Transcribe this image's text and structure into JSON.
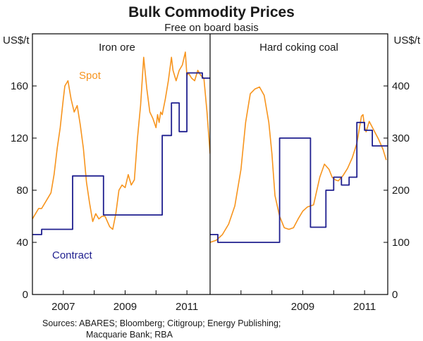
{
  "header": {
    "title": "Bulk Commodity Prices",
    "subtitle": "Free on board basis"
  },
  "source": {
    "line1": "Sources: ABARES; Bloomberg; Citigroup; Energy Publishing;",
    "line2": "Macquarie Bank; RBA"
  },
  "colors": {
    "spot": "#f7941d",
    "contract": "#1f1f8f",
    "axis": "#000000"
  },
  "chart_data": [
    {
      "type": "line",
      "title": "Iron ore",
      "ylabel": "US$/t",
      "ylim": [
        0,
        200
      ],
      "yticks": [
        0,
        40,
        80,
        120,
        160
      ],
      "xlim": [
        2006.0,
        2011.75
      ],
      "xtick_labels": [
        {
          "label": "2007",
          "x": 2007.0
        },
        {
          "label": "2009",
          "x": 2009.0
        },
        {
          "label": "2011",
          "x": 2011.0
        }
      ],
      "annotations": [
        {
          "text": "Spot",
          "series": "Spot"
        },
        {
          "text": "Contract",
          "series": "Contract"
        }
      ],
      "series": [
        {
          "name": "Spot",
          "x": [
            2006.0,
            2006.1,
            2006.2,
            2006.3,
            2006.45,
            2006.6,
            2006.7,
            2006.8,
            2006.9,
            2007.0,
            2007.05,
            2007.15,
            2007.25,
            2007.35,
            2007.45,
            2007.55,
            2007.65,
            2007.75,
            2007.85,
            2007.95,
            2008.05,
            2008.15,
            2008.25,
            2008.35,
            2008.5,
            2008.6,
            2008.7,
            2008.8,
            2008.9,
            2009.0,
            2009.1,
            2009.2,
            2009.3,
            2009.4,
            2009.5,
            2009.6,
            2009.7,
            2009.8,
            2009.9,
            2010.0,
            2010.05,
            2010.1,
            2010.15,
            2010.2,
            2010.3,
            2010.4,
            2010.5,
            2010.55,
            2010.65,
            2010.75,
            2010.85,
            2010.95,
            2011.0,
            2011.05,
            2011.15,
            2011.25,
            2011.35,
            2011.45,
            2011.55,
            2011.65,
            2011.75
          ],
          "values": [
            58,
            62,
            66,
            66,
            72,
            78,
            92,
            112,
            128,
            150,
            160,
            164,
            150,
            140,
            145,
            130,
            112,
            86,
            70,
            56,
            62,
            58,
            60,
            60,
            52,
            50,
            62,
            80,
            84,
            82,
            92,
            84,
            88,
            120,
            145,
            182,
            158,
            140,
            135,
            128,
            138,
            132,
            140,
            138,
            150,
            164,
            182,
            172,
            164,
            172,
            176,
            186,
            168,
            170,
            166,
            164,
            172,
            168,
            166,
            140,
            108
          ]
        },
        {
          "name": "Contract",
          "x": [
            2006.0,
            2006.3,
            2006.3,
            2007.3,
            2007.3,
            2008.3,
            2008.3,
            2009.3,
            2009.3,
            2010.2,
            2010.2,
            2010.5,
            2010.5,
            2010.75,
            2010.75,
            2011.0,
            2011.0,
            2011.5,
            2011.5,
            2011.75
          ],
          "values": [
            46,
            46,
            50,
            50,
            91,
            91,
            61,
            61,
            61,
            61,
            122,
            122,
            147,
            147,
            125,
            125,
            170,
            170,
            166,
            166
          ]
        }
      ]
    },
    {
      "type": "line",
      "title": "Hard coking coal",
      "ylabel": "US$/t",
      "ylim": [
        0,
        500
      ],
      "yticks": [
        0,
        100,
        200,
        300,
        400
      ],
      "xlim": [
        2006.0,
        2011.75
      ],
      "xtick_labels": [
        {
          "label": "2009",
          "x": 2009.0
        },
        {
          "label": "2011",
          "x": 2011.0
        }
      ],
      "series": [
        {
          "name": "Spot",
          "x": [
            2006.0,
            2006.2,
            2006.4,
            2006.6,
            2006.8,
            2007.0,
            2007.15,
            2007.3,
            2007.45,
            2007.6,
            2007.75,
            2007.9,
            2008.0,
            2008.1,
            2008.25,
            2008.4,
            2008.55,
            2008.7,
            2008.85,
            2009.0,
            2009.15,
            2009.35,
            2009.55,
            2009.7,
            2009.85,
            2009.95,
            2010.05,
            2010.15,
            2010.3,
            2010.45,
            2010.6,
            2010.75,
            2010.9,
            2010.95,
            2011.0,
            2011.05,
            2011.15,
            2011.3,
            2011.45,
            2011.6,
            2011.7
          ],
          "values": [
            100,
            104,
            115,
            135,
            170,
            240,
            330,
            385,
            394,
            398,
            382,
            330,
            270,
            190,
            150,
            128,
            125,
            128,
            145,
            160,
            168,
            172,
            225,
            250,
            240,
            225,
            220,
            218,
            228,
            242,
            262,
            290,
            342,
            345,
            322,
            312,
            332,
            315,
            298,
            278,
            258
          ]
        },
        {
          "name": "Contract",
          "x": [
            2006.0,
            2006.25,
            2006.25,
            2007.25,
            2007.25,
            2008.25,
            2008.25,
            2009.25,
            2009.25,
            2009.5,
            2009.5,
            2009.75,
            2009.75,
            2010.0,
            2010.0,
            2010.25,
            2010.25,
            2010.5,
            2010.5,
            2010.75,
            2010.75,
            2011.0,
            2011.0,
            2011.25,
            2011.25,
            2011.5,
            2011.5,
            2011.75
          ],
          "values": [
            115,
            115,
            100,
            100,
            100,
            100,
            300,
            300,
            129,
            129,
            129,
            129,
            200,
            200,
            225,
            225,
            210,
            210,
            225,
            225,
            330,
            330,
            315,
            315,
            285,
            285,
            285,
            285
          ]
        }
      ]
    }
  ]
}
